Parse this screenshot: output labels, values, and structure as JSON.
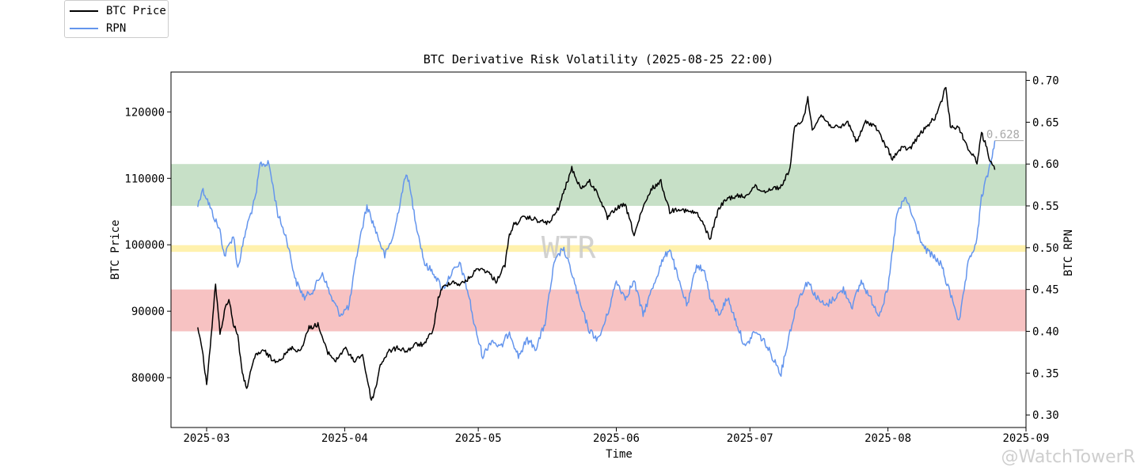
{
  "chart_data": {
    "type": "line",
    "title": "BTC Derivative Risk Volatility (2025-08-25 22:00)",
    "xlabel": "Time",
    "ylabel_left": "BTC Price",
    "ylabel_right": "BTC RPN",
    "watermark": "WTR",
    "credit": "@WatchTowerR",
    "x_ticks": [
      "2025-03",
      "2025-04",
      "2025-05",
      "2025-06",
      "2025-07",
      "2025-08",
      "2025-09"
    ],
    "xlim": [
      "2025-02-21",
      "2025-09-01"
    ],
    "left_ticks": [
      "80000",
      "90000",
      "100000",
      "110000",
      "120000"
    ],
    "left_ylim": [
      72500,
      126000
    ],
    "right_ticks": [
      "0.30",
      "0.35",
      "0.40",
      "0.45",
      "0.50",
      "0.55",
      "0.60",
      "0.65",
      "0.70"
    ],
    "right_ylim": [
      0.285,
      0.71
    ],
    "bands": [
      {
        "name": "green",
        "from": 0.55,
        "to": 0.6,
        "color": "#8fc18f"
      },
      {
        "name": "yellow",
        "from": 0.495,
        "to": 0.503,
        "color": "#ffe45c"
      },
      {
        "name": "red",
        "from": 0.4,
        "to": 0.45,
        "color": "#ef8585"
      }
    ],
    "last_rpn_label": "0.628",
    "legend": [
      "BTC Price",
      "RPN"
    ],
    "series": [
      {
        "name": "BTC Price",
        "axis": "left",
        "color": "#000000",
        "points": [
          [
            "2025-02-27",
            87500
          ],
          [
            "2025-02-28",
            84200
          ],
          [
            "2025-03-01",
            79000
          ],
          [
            "2025-03-02",
            86000
          ],
          [
            "2025-03-03",
            94200
          ],
          [
            "2025-03-04",
            86500
          ],
          [
            "2025-03-05",
            90000
          ],
          [
            "2025-03-06",
            92000
          ],
          [
            "2025-03-07",
            88000
          ],
          [
            "2025-03-08",
            86500
          ],
          [
            "2025-03-09",
            80500
          ],
          [
            "2025-03-10",
            78500
          ],
          [
            "2025-03-11",
            81000
          ],
          [
            "2025-03-12",
            83500
          ],
          [
            "2025-03-14",
            84000
          ],
          [
            "2025-03-16",
            82500
          ],
          [
            "2025-03-18",
            83000
          ],
          [
            "2025-03-20",
            84500
          ],
          [
            "2025-03-22",
            84000
          ],
          [
            "2025-03-24",
            87500
          ],
          [
            "2025-03-26",
            88000
          ],
          [
            "2025-03-28",
            84000
          ],
          [
            "2025-03-30",
            82500
          ],
          [
            "2025-04-01",
            84500
          ],
          [
            "2025-04-03",
            82500
          ],
          [
            "2025-04-05",
            83500
          ],
          [
            "2025-04-07",
            76500
          ],
          [
            "2025-04-08",
            78500
          ],
          [
            "2025-04-09",
            82000
          ],
          [
            "2025-04-11",
            84000
          ],
          [
            "2025-04-13",
            84500
          ],
          [
            "2025-04-15",
            84000
          ],
          [
            "2025-04-17",
            85000
          ],
          [
            "2025-04-19",
            85000
          ],
          [
            "2025-04-21",
            87500
          ],
          [
            "2025-04-22",
            92000
          ],
          [
            "2025-04-23",
            93500
          ],
          [
            "2025-04-25",
            94500
          ],
          [
            "2025-04-27",
            94000
          ],
          [
            "2025-04-29",
            95000
          ],
          [
            "2025-05-01",
            96500
          ],
          [
            "2025-05-03",
            96000
          ],
          [
            "2025-05-05",
            94500
          ],
          [
            "2025-05-07",
            97000
          ],
          [
            "2025-05-08",
            101500
          ],
          [
            "2025-05-09",
            103000
          ],
          [
            "2025-05-11",
            104000
          ],
          [
            "2025-05-13",
            104000
          ],
          [
            "2025-05-15",
            103500
          ],
          [
            "2025-05-17",
            103300
          ],
          [
            "2025-05-19",
            105500
          ],
          [
            "2025-05-21",
            109500
          ],
          [
            "2025-05-22",
            111500
          ],
          [
            "2025-05-24",
            108500
          ],
          [
            "2025-05-26",
            109500
          ],
          [
            "2025-05-28",
            107500
          ],
          [
            "2025-05-30",
            104000
          ],
          [
            "2025-06-01",
            105500
          ],
          [
            "2025-06-03",
            106000
          ],
          [
            "2025-06-05",
            101500
          ],
          [
            "2025-06-07",
            105500
          ],
          [
            "2025-06-09",
            108500
          ],
          [
            "2025-06-11",
            109500
          ],
          [
            "2025-06-13",
            105000
          ],
          [
            "2025-06-15",
            105500
          ],
          [
            "2025-06-17",
            105000
          ],
          [
            "2025-06-19",
            104800
          ],
          [
            "2025-06-21",
            102500
          ],
          [
            "2025-06-22",
            100800
          ],
          [
            "2025-06-24",
            105500
          ],
          [
            "2025-06-26",
            107000
          ],
          [
            "2025-06-28",
            107300
          ],
          [
            "2025-06-30",
            107300
          ],
          [
            "2025-07-02",
            108800
          ],
          [
            "2025-07-04",
            108000
          ],
          [
            "2025-07-06",
            108500
          ],
          [
            "2025-07-08",
            108700
          ],
          [
            "2025-07-10",
            111500
          ],
          [
            "2025-07-11",
            117500
          ],
          [
            "2025-07-13",
            119000
          ],
          [
            "2025-07-14",
            122000
          ],
          [
            "2025-07-15",
            117500
          ],
          [
            "2025-07-17",
            119500
          ],
          [
            "2025-07-19",
            118000
          ],
          [
            "2025-07-21",
            117500
          ],
          [
            "2025-07-23",
            118500
          ],
          [
            "2025-07-25",
            115500
          ],
          [
            "2025-07-27",
            118500
          ],
          [
            "2025-07-29",
            118000
          ],
          [
            "2025-07-31",
            115500
          ],
          [
            "2025-08-02",
            113000
          ],
          [
            "2025-08-04",
            114500
          ],
          [
            "2025-08-06",
            114500
          ],
          [
            "2025-08-08",
            116500
          ],
          [
            "2025-08-10",
            118000
          ],
          [
            "2025-08-12",
            119500
          ],
          [
            "2025-08-14",
            123800
          ],
          [
            "2025-08-15",
            118000
          ],
          [
            "2025-08-17",
            117500
          ],
          [
            "2025-08-19",
            114500
          ],
          [
            "2025-08-21",
            112500
          ],
          [
            "2025-08-22",
            116800
          ],
          [
            "2025-08-23",
            115000
          ],
          [
            "2025-08-24",
            112500
          ],
          [
            "2025-08-25",
            111300
          ]
        ]
      },
      {
        "name": "RPN",
        "axis": "right",
        "color": "#6495ed",
        "points": [
          [
            "2025-02-27",
            0.55
          ],
          [
            "2025-02-28",
            0.57
          ],
          [
            "2025-03-01",
            0.56
          ],
          [
            "2025-03-02",
            0.545
          ],
          [
            "2025-03-04",
            0.52
          ],
          [
            "2025-03-05",
            0.49
          ],
          [
            "2025-03-07",
            0.515
          ],
          [
            "2025-03-08",
            0.475
          ],
          [
            "2025-03-10",
            0.525
          ],
          [
            "2025-03-12",
            0.56
          ],
          [
            "2025-03-13",
            0.6
          ],
          [
            "2025-03-15",
            0.6
          ],
          [
            "2025-03-17",
            0.54
          ],
          [
            "2025-03-19",
            0.51
          ],
          [
            "2025-03-21",
            0.46
          ],
          [
            "2025-03-23",
            0.44
          ],
          [
            "2025-03-25",
            0.45
          ],
          [
            "2025-03-27",
            0.47
          ],
          [
            "2025-03-29",
            0.44
          ],
          [
            "2025-03-31",
            0.42
          ],
          [
            "2025-04-02",
            0.43
          ],
          [
            "2025-04-04",
            0.5
          ],
          [
            "2025-04-06",
            0.55
          ],
          [
            "2025-04-08",
            0.52
          ],
          [
            "2025-04-10",
            0.49
          ],
          [
            "2025-04-12",
            0.515
          ],
          [
            "2025-04-14",
            0.57
          ],
          [
            "2025-04-15",
            0.59
          ],
          [
            "2025-04-17",
            0.53
          ],
          [
            "2025-04-19",
            0.48
          ],
          [
            "2025-04-21",
            0.47
          ],
          [
            "2025-04-23",
            0.45
          ],
          [
            "2025-04-25",
            0.47
          ],
          [
            "2025-04-27",
            0.48
          ],
          [
            "2025-04-29",
            0.44
          ],
          [
            "2025-04-30",
            0.41
          ],
          [
            "2025-05-02",
            0.37
          ],
          [
            "2025-05-04",
            0.39
          ],
          [
            "2025-05-06",
            0.38
          ],
          [
            "2025-05-08",
            0.4
          ],
          [
            "2025-05-10",
            0.37
          ],
          [
            "2025-05-12",
            0.39
          ],
          [
            "2025-05-14",
            0.38
          ],
          [
            "2025-05-16",
            0.41
          ],
          [
            "2025-05-18",
            0.48
          ],
          [
            "2025-05-20",
            0.5
          ],
          [
            "2025-05-22",
            0.47
          ],
          [
            "2025-05-24",
            0.43
          ],
          [
            "2025-05-26",
            0.4
          ],
          [
            "2025-05-28",
            0.39
          ],
          [
            "2025-05-30",
            0.42
          ],
          [
            "2025-06-01",
            0.46
          ],
          [
            "2025-06-03",
            0.44
          ],
          [
            "2025-06-05",
            0.46
          ],
          [
            "2025-06-07",
            0.42
          ],
          [
            "2025-06-09",
            0.45
          ],
          [
            "2025-06-11",
            0.48
          ],
          [
            "2025-06-13",
            0.5
          ],
          [
            "2025-06-15",
            0.46
          ],
          [
            "2025-06-17",
            0.43
          ],
          [
            "2025-06-19",
            0.48
          ],
          [
            "2025-06-21",
            0.47
          ],
          [
            "2025-06-22",
            0.44
          ],
          [
            "2025-06-24",
            0.42
          ],
          [
            "2025-06-26",
            0.44
          ],
          [
            "2025-06-28",
            0.41
          ],
          [
            "2025-06-30",
            0.38
          ],
          [
            "2025-07-02",
            0.4
          ],
          [
            "2025-07-04",
            0.39
          ],
          [
            "2025-07-06",
            0.37
          ],
          [
            "2025-07-08",
            0.35
          ],
          [
            "2025-07-10",
            0.4
          ],
          [
            "2025-07-12",
            0.44
          ],
          [
            "2025-07-14",
            0.46
          ],
          [
            "2025-07-16",
            0.44
          ],
          [
            "2025-07-18",
            0.43
          ],
          [
            "2025-07-20",
            0.44
          ],
          [
            "2025-07-22",
            0.45
          ],
          [
            "2025-07-24",
            0.43
          ],
          [
            "2025-07-26",
            0.46
          ],
          [
            "2025-07-28",
            0.44
          ],
          [
            "2025-07-30",
            0.42
          ],
          [
            "2025-08-01",
            0.45
          ],
          [
            "2025-08-03",
            0.54
          ],
          [
            "2025-08-05",
            0.56
          ],
          [
            "2025-08-07",
            0.53
          ],
          [
            "2025-08-09",
            0.5
          ],
          [
            "2025-08-11",
            0.49
          ],
          [
            "2025-08-13",
            0.48
          ],
          [
            "2025-08-14",
            0.46
          ],
          [
            "2025-08-16",
            0.43
          ],
          [
            "2025-08-17",
            0.41
          ],
          [
            "2025-08-19",
            0.48
          ],
          [
            "2025-08-21",
            0.51
          ],
          [
            "2025-08-22",
            0.56
          ],
          [
            "2025-08-23",
            0.58
          ],
          [
            "2025-08-24",
            0.6
          ],
          [
            "2025-08-25",
            0.628
          ]
        ]
      }
    ]
  }
}
